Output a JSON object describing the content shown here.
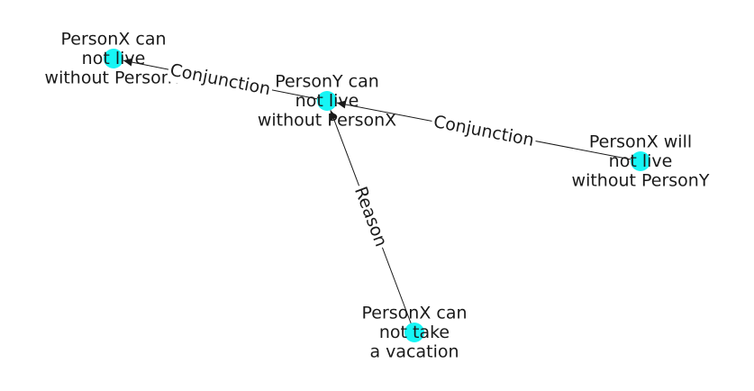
{
  "diagram": {
    "node_color": "#16f5f5",
    "edge_color": "#1a1a1a",
    "nodes": [
      {
        "id": "n1",
        "lines": [
          "PersonX can",
          "not live",
          "without PersonY"
        ]
      },
      {
        "id": "n2",
        "lines": [
          "PersonY can",
          "not live",
          "without PersonX"
        ]
      },
      {
        "id": "n3",
        "lines": [
          "PersonX will",
          "not live",
          "without PersonY"
        ]
      },
      {
        "id": "n4",
        "lines": [
          "PersonX can",
          "not take",
          "a vacation"
        ]
      }
    ],
    "edges": [
      {
        "id": "e1",
        "source": "n2",
        "target": "n1",
        "label": "Conjunction"
      },
      {
        "id": "e2",
        "source": "n3",
        "target": "n2",
        "label": "Conjunction"
      },
      {
        "id": "e3",
        "source": "n4",
        "target": "n2",
        "label": "Reason"
      }
    ]
  }
}
